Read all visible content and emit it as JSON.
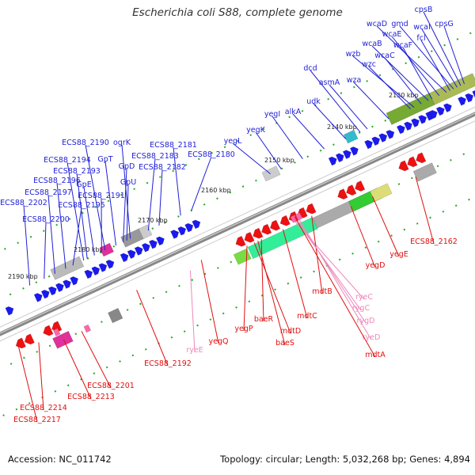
{
  "title": "Escherichia coli S88, complete genome",
  "footer": {
    "accession": "Accession: NC_011742",
    "summary": "Topology: circular; Length: 5,032,268 bp; Genes: 4,894"
  },
  "colors": {
    "plus_label": "#1f1fd6",
    "minus_label": "#e01010",
    "rna_label": "#ee88bb",
    "forward_gene": "#1a1af0",
    "reverse_gene": "#ee1111",
    "rna_gene": "#ff66aa",
    "backbone": "#888888",
    "tick": "#22aa22"
  },
  "ticks": [
    "2130 kbp",
    "2140 kbp",
    "2150 kbp",
    "2160 kbp",
    "2170 kbp",
    "2180 kbp",
    "2190 kbp"
  ],
  "labels_top": [
    "cpsB",
    "wcaD",
    "gmd",
    "wcaI",
    "cpsG",
    "wcaE",
    "fcl",
    "wcaB",
    "wcaF",
    "wzb",
    "wcaC",
    "wzc",
    "dcd",
    "asmA",
    "wza",
    "udk",
    "alkA",
    "yegI",
    "yegK",
    "yegL",
    "ECS88_2181",
    "ECS88_2180",
    "ogrK",
    "ECS88_2190",
    "GpT",
    "ECS88_2183",
    "ECS88_2194",
    "GpD",
    "ECS88_2182",
    "ECS88_2193",
    "GpE",
    "GpU",
    "ECS88_2196",
    "ECS88_2191",
    "ECS88_2197",
    "ECS88_2202",
    "ECS88_2195",
    "ECS88_2200"
  ],
  "labels_bottom": [
    "ECS88_2162",
    "yegE",
    "yegD",
    "ryeC",
    "rygC",
    "mdtB",
    "rygD",
    "ryeD",
    "mdtC",
    "mdtA",
    "baeR",
    "mdtD",
    "yegP",
    "baeS",
    "yegQ",
    "ryeE",
    "ECS88_2192",
    "ECS88_2201",
    "ECS88_2213",
    "ECS88_2214",
    "ECS88_2217"
  ]
}
